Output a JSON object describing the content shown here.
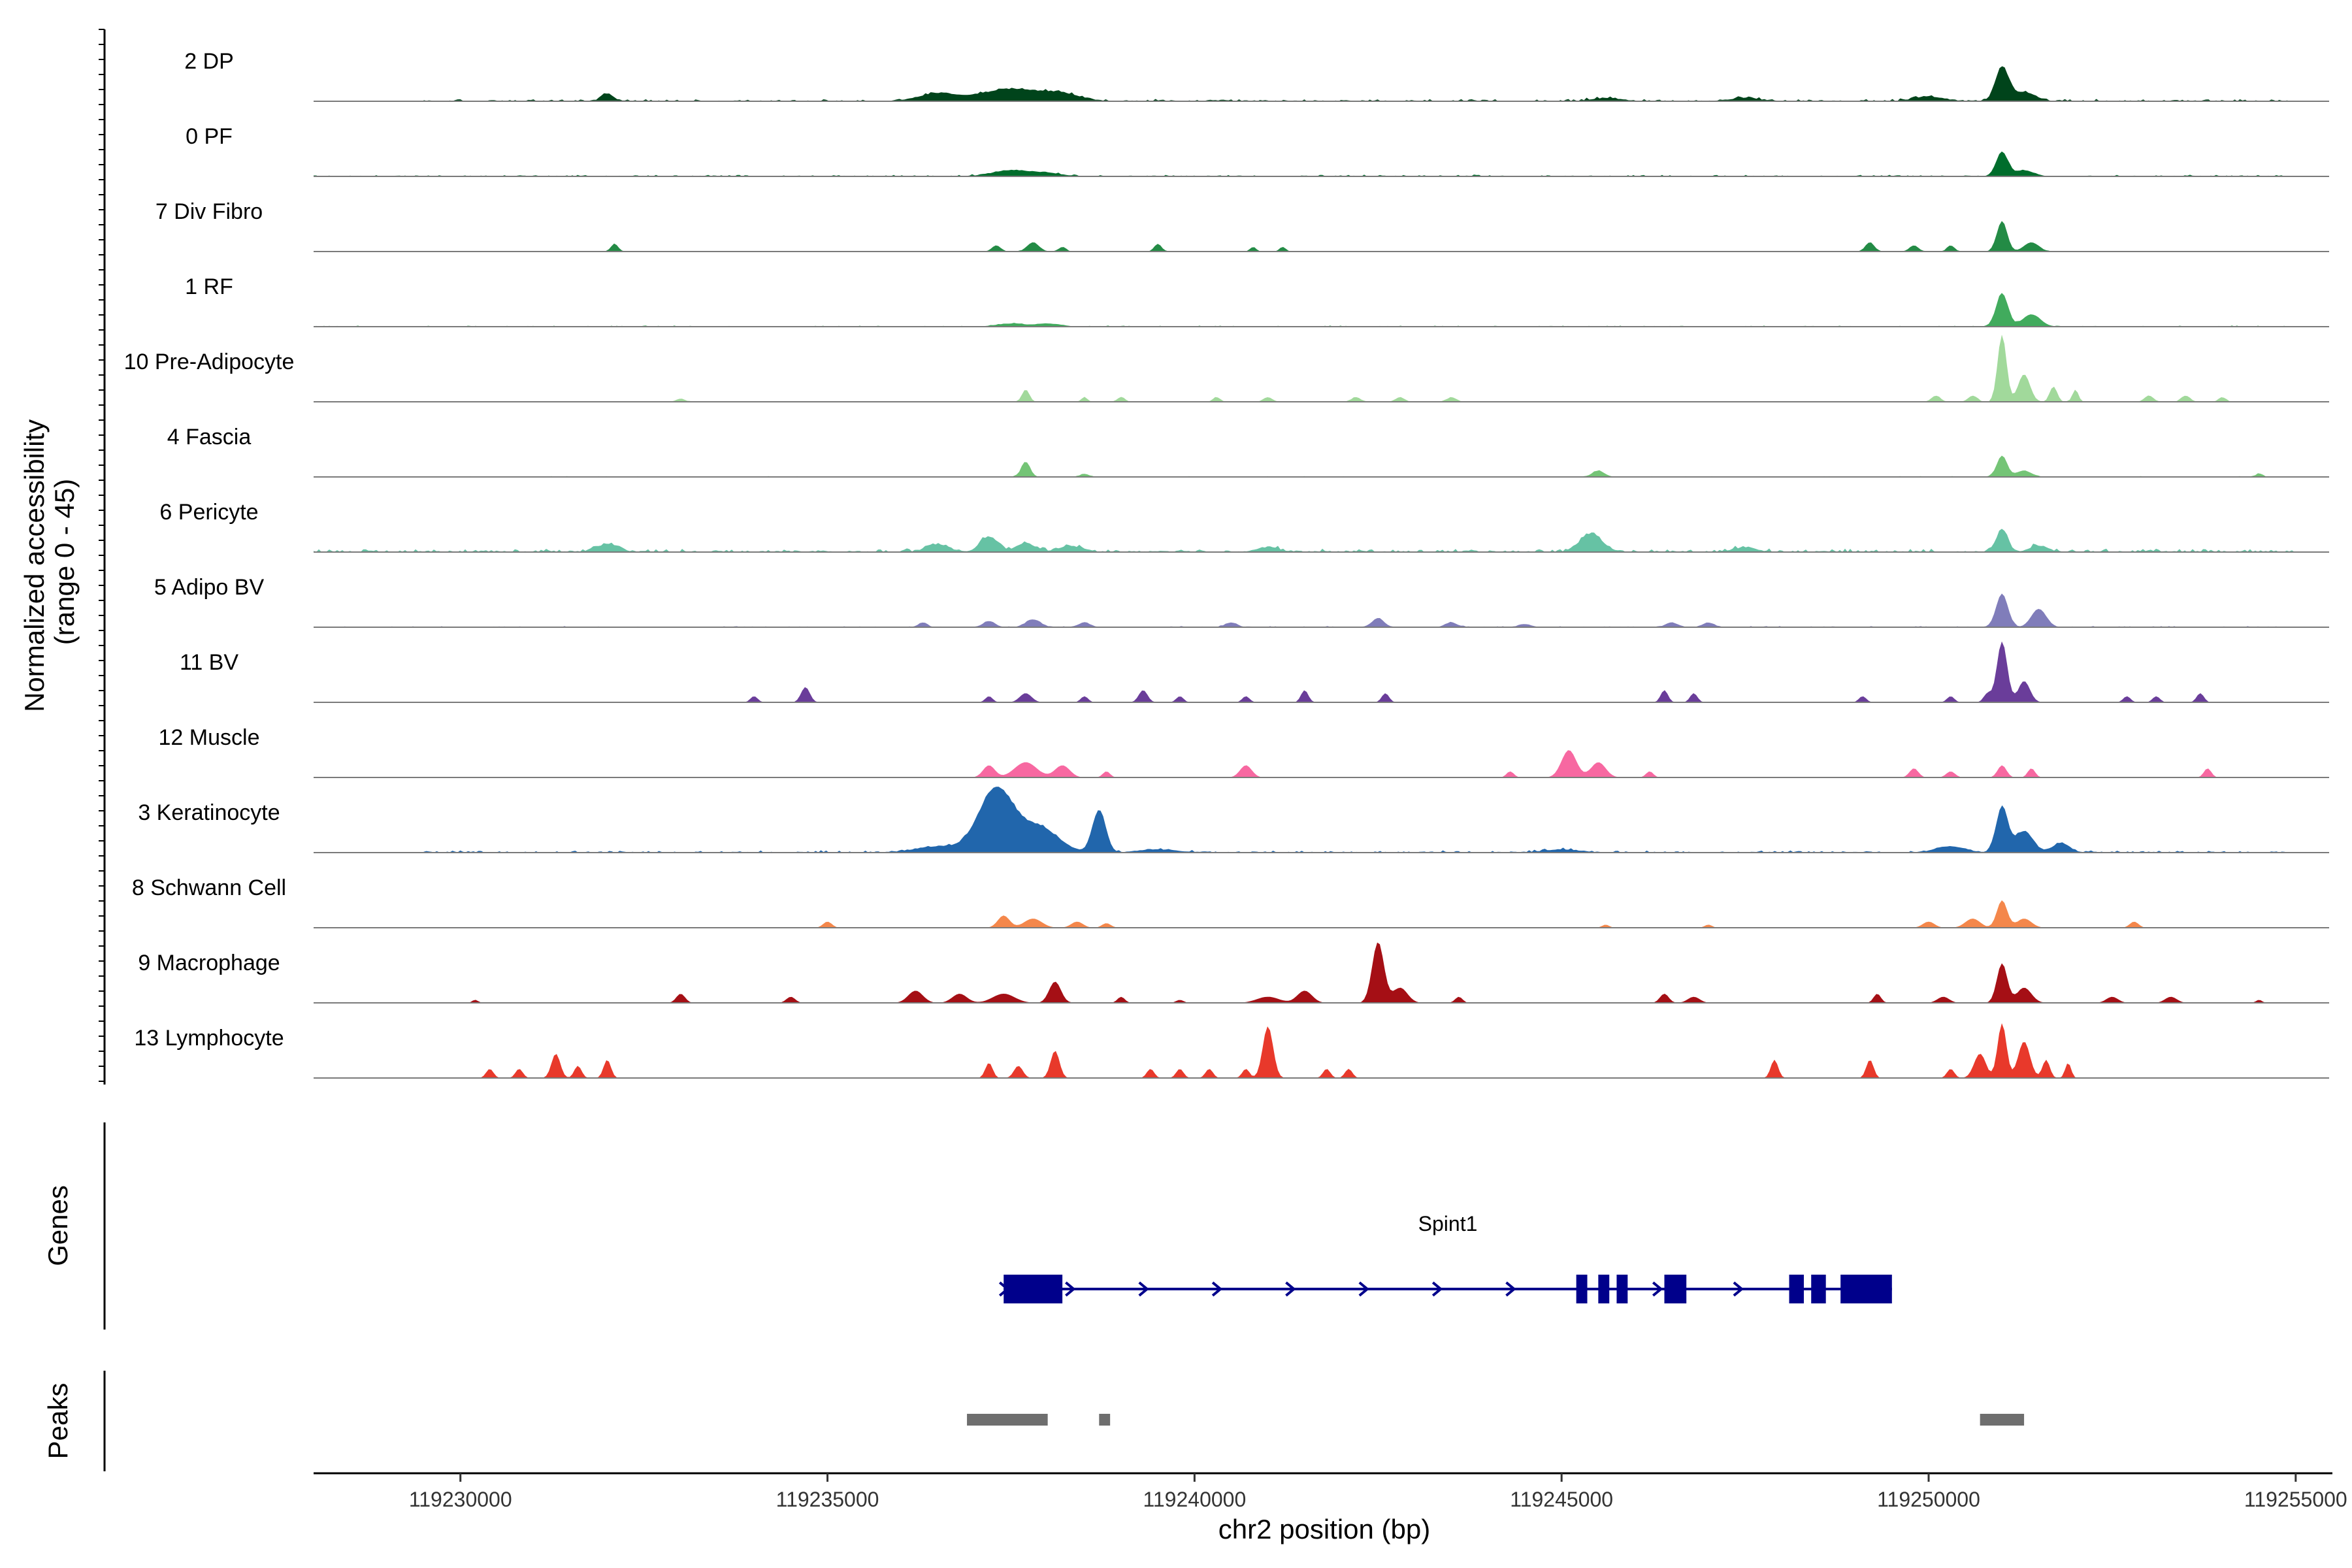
{
  "chart_data": {
    "type": "area",
    "y_axis_title_line1": "Normalized accessibility",
    "y_axis_title_line2": "(range 0 - 45)",
    "ylim": [
      0,
      45
    ],
    "x_axis_title": "chr2 position (bp)",
    "xlim": [
      119228000,
      119255500
    ],
    "x_ticks": [
      {
        "value": 119230000,
        "label": "119230000"
      },
      {
        "value": 119235000,
        "label": "119235000"
      },
      {
        "value": 119240000,
        "label": "119240000"
      },
      {
        "value": 119245000,
        "label": "119245000"
      },
      {
        "value": 119250000,
        "label": "119250000"
      },
      {
        "value": 119255000,
        "label": "119255000"
      }
    ],
    "tracks": [
      {
        "label": "2 DP",
        "color": "#00441b",
        "noise": 0.8,
        "start": 119229500,
        "end": 119255000,
        "peaks": [
          [
            119232000,
            80,
            5
          ],
          [
            119236500,
            260,
            5
          ],
          [
            119237500,
            400,
            8
          ],
          [
            119238200,
            250,
            4
          ],
          [
            119245600,
            200,
            2
          ],
          [
            119247500,
            200,
            2
          ],
          [
            119250000,
            200,
            3
          ],
          [
            119251000,
            90,
            22
          ],
          [
            119251300,
            150,
            6
          ]
        ]
      },
      {
        "label": "0 PF",
        "color": "#006d2c",
        "noise": 0.6,
        "start": 119228000,
        "end": 119255000,
        "peaks": [
          [
            119237500,
            250,
            4
          ],
          [
            119238000,
            200,
            2
          ],
          [
            119251000,
            80,
            16
          ],
          [
            119251300,
            120,
            4
          ]
        ]
      },
      {
        "label": "7 Div Fibro",
        "color": "#238b45",
        "noise": 0.15,
        "start": 119228000,
        "end": 119255000,
        "peaks": [
          [
            119232100,
            50,
            5
          ],
          [
            119237300,
            60,
            4
          ],
          [
            119237800,
            80,
            6
          ],
          [
            119238200,
            50,
            3
          ],
          [
            119239500,
            50,
            5
          ],
          [
            119240800,
            40,
            3
          ],
          [
            119241200,
            40,
            3
          ],
          [
            119249200,
            60,
            6
          ],
          [
            119249800,
            60,
            4
          ],
          [
            119250300,
            50,
            4
          ],
          [
            119251000,
            70,
            20
          ],
          [
            119251400,
            100,
            6
          ]
        ]
      },
      {
        "label": "1 RF",
        "color": "#41ab5d",
        "noise": 0.4,
        "start": 119228000,
        "end": 119255000,
        "peaks": [
          [
            119237500,
            200,
            2
          ],
          [
            119238000,
            150,
            2
          ],
          [
            119251000,
            80,
            22
          ],
          [
            119251400,
            120,
            8
          ]
        ]
      },
      {
        "label": "10 Pre-Adipocyte",
        "color": "#a1d99b",
        "noise": 0.2,
        "start": 119228000,
        "end": 119255000,
        "peaks": [
          [
            119233000,
            60,
            2
          ],
          [
            119237700,
            50,
            8
          ],
          [
            119238500,
            40,
            3
          ],
          [
            119239000,
            50,
            3
          ],
          [
            119240300,
            50,
            3
          ],
          [
            119241000,
            60,
            3
          ],
          [
            119242200,
            60,
            3
          ],
          [
            119242800,
            60,
            3
          ],
          [
            119243500,
            60,
            3
          ],
          [
            119250100,
            60,
            4
          ],
          [
            119250600,
            60,
            4
          ],
          [
            119251000,
            60,
            44
          ],
          [
            119251300,
            80,
            18
          ],
          [
            119251700,
            50,
            10
          ],
          [
            119252000,
            40,
            8
          ],
          [
            119253000,
            60,
            4
          ],
          [
            119253500,
            60,
            4
          ],
          [
            119254000,
            50,
            3
          ]
        ]
      },
      {
        "label": "4 Fascia",
        "color": "#74c476",
        "noise": 0.3,
        "start": 119228000,
        "end": 119255000,
        "peaks": [
          [
            119237700,
            60,
            10
          ],
          [
            119238500,
            60,
            2
          ],
          [
            119245500,
            80,
            4
          ],
          [
            119251000,
            70,
            14
          ],
          [
            119251300,
            100,
            4
          ],
          [
            119254500,
            50,
            2
          ]
        ]
      },
      {
        "label": "6 Pericyte",
        "color": "#66c2a4",
        "noise": 1.2,
        "start": 119228000,
        "end": 119255000,
        "peaks": [
          [
            119232000,
            150,
            5
          ],
          [
            119236500,
            150,
            5
          ],
          [
            119237200,
            120,
            10
          ],
          [
            119237700,
            120,
            6
          ],
          [
            119238300,
            150,
            4
          ],
          [
            119241000,
            150,
            3
          ],
          [
            119245400,
            150,
            12
          ],
          [
            119247500,
            150,
            3
          ],
          [
            119251000,
            80,
            14
          ],
          [
            119251500,
            120,
            4
          ]
        ]
      },
      {
        "label": "5 Adipo BV",
        "color": "#807dba",
        "noise": 0.4,
        "start": 119228000,
        "end": 119255000,
        "peaks": [
          [
            119236300,
            60,
            3
          ],
          [
            119237200,
            80,
            4
          ],
          [
            119237800,
            100,
            5
          ],
          [
            119238500,
            80,
            3
          ],
          [
            119240500,
            80,
            3
          ],
          [
            119242500,
            80,
            6
          ],
          [
            119243500,
            80,
            3
          ],
          [
            119244500,
            80,
            2
          ],
          [
            119246500,
            80,
            3
          ],
          [
            119247000,
            80,
            3
          ],
          [
            119251000,
            80,
            22
          ],
          [
            119251500,
            100,
            12
          ]
        ]
      },
      {
        "label": "11 BV",
        "color": "#6a3d9a",
        "noise": 0.0,
        "start": 119228000,
        "end": 119255000,
        "peaks": [
          [
            119234000,
            50,
            4
          ],
          [
            119234700,
            60,
            10
          ],
          [
            119237200,
            50,
            4
          ],
          [
            119237700,
            80,
            6
          ],
          [
            119238500,
            50,
            4
          ],
          [
            119239300,
            60,
            8
          ],
          [
            119239800,
            50,
            4
          ],
          [
            119240700,
            50,
            4
          ],
          [
            119241500,
            50,
            8
          ],
          [
            119242600,
            50,
            6
          ],
          [
            119246400,
            50,
            8
          ],
          [
            119246800,
            50,
            6
          ],
          [
            119249100,
            50,
            4
          ],
          [
            119250300,
            50,
            4
          ],
          [
            119250800,
            50,
            6
          ],
          [
            119251000,
            70,
            40
          ],
          [
            119251300,
            80,
            14
          ],
          [
            119252700,
            50,
            4
          ],
          [
            119253100,
            50,
            4
          ],
          [
            119253700,
            50,
            6
          ]
        ]
      },
      {
        "label": "12 Muscle",
        "color": "#f768a1",
        "noise": 0.0,
        "start": 119228000,
        "end": 119255000,
        "peaks": [
          [
            119237200,
            80,
            8
          ],
          [
            119237700,
            150,
            10
          ],
          [
            119238200,
            100,
            8
          ],
          [
            119238800,
            50,
            4
          ],
          [
            119240700,
            80,
            8
          ],
          [
            119244300,
            50,
            4
          ],
          [
            119245100,
            100,
            18
          ],
          [
            119245500,
            100,
            10
          ],
          [
            119246200,
            50,
            4
          ],
          [
            119249800,
            60,
            6
          ],
          [
            119250300,
            60,
            4
          ],
          [
            119251000,
            60,
            8
          ],
          [
            119251400,
            50,
            6
          ],
          [
            119253800,
            50,
            6
          ]
        ]
      },
      {
        "label": "3 Keratinocyte",
        "color": "#2166ac",
        "noise": 0.8,
        "start": 119229500,
        "end": 119255000,
        "peaks": [
          [
            119237300,
            240,
            42
          ],
          [
            119237900,
            250,
            16
          ],
          [
            119238700,
            90,
            28
          ],
          [
            119236500,
            300,
            4
          ],
          [
            119239500,
            250,
            2
          ],
          [
            119245000,
            250,
            2
          ],
          [
            119250300,
            200,
            4
          ],
          [
            119251000,
            80,
            30
          ],
          [
            119251300,
            120,
            14
          ],
          [
            119251800,
            120,
            6
          ]
        ]
      },
      {
        "label": "8 Schwann Cell",
        "color": "#f4874b",
        "noise": 0.0,
        "start": 119228000,
        "end": 119255000,
        "peaks": [
          [
            119235000,
            60,
            4
          ],
          [
            119237400,
            80,
            8
          ],
          [
            119237800,
            120,
            6
          ],
          [
            119238400,
            80,
            4
          ],
          [
            119238800,
            60,
            3
          ],
          [
            119245600,
            50,
            2
          ],
          [
            119247000,
            50,
            2
          ],
          [
            119250000,
            80,
            4
          ],
          [
            119250600,
            100,
            6
          ],
          [
            119251000,
            70,
            18
          ],
          [
            119251300,
            100,
            6
          ],
          [
            119252800,
            60,
            4
          ]
        ]
      },
      {
        "label": "9 Macrophage",
        "color": "#a50f15",
        "noise": 0.0,
        "start": 119228000,
        "end": 119255000,
        "peaks": [
          [
            119230200,
            40,
            2
          ],
          [
            119233000,
            60,
            6
          ],
          [
            119234500,
            60,
            4
          ],
          [
            119236200,
            100,
            8
          ],
          [
            119236800,
            100,
            6
          ],
          [
            119237400,
            150,
            6
          ],
          [
            119238100,
            80,
            14
          ],
          [
            119239000,
            50,
            4
          ],
          [
            119239800,
            50,
            2
          ],
          [
            119241000,
            150,
            4
          ],
          [
            119241500,
            100,
            8
          ],
          [
            119242500,
            80,
            40
          ],
          [
            119242800,
            100,
            10
          ],
          [
            119243600,
            50,
            4
          ],
          [
            119246400,
            60,
            6
          ],
          [
            119246800,
            80,
            4
          ],
          [
            119249300,
            50,
            6
          ],
          [
            119250200,
            80,
            4
          ],
          [
            119251000,
            70,
            26
          ],
          [
            119251300,
            100,
            10
          ],
          [
            119252500,
            80,
            4
          ],
          [
            119253300,
            80,
            4
          ],
          [
            119254500,
            40,
            2
          ]
        ]
      },
      {
        "label": "13 Lymphocyte",
        "color": "#e8392b",
        "noise": 0.0,
        "start": 119228000,
        "end": 119255000,
        "peaks": [
          [
            119230400,
            50,
            6
          ],
          [
            119230800,
            50,
            6
          ],
          [
            119231300,
            60,
            16
          ],
          [
            119231600,
            50,
            8
          ],
          [
            119232000,
            50,
            12
          ],
          [
            119237200,
            50,
            10
          ],
          [
            119237600,
            60,
            8
          ],
          [
            119238100,
            60,
            18
          ],
          [
            119239400,
            50,
            6
          ],
          [
            119239800,
            50,
            6
          ],
          [
            119240200,
            50,
            6
          ],
          [
            119240700,
            50,
            6
          ],
          [
            119241000,
            70,
            34
          ],
          [
            119241800,
            50,
            6
          ],
          [
            119242100,
            50,
            6
          ],
          [
            119247900,
            50,
            12
          ],
          [
            119249200,
            50,
            12
          ],
          [
            119250300,
            50,
            6
          ],
          [
            119250700,
            80,
            16
          ],
          [
            119251000,
            60,
            36
          ],
          [
            119251300,
            80,
            24
          ],
          [
            119251600,
            50,
            12
          ],
          [
            119251900,
            40,
            10
          ]
        ]
      }
    ],
    "genes_panel_title": "Genes",
    "genes": [
      {
        "name": "Spint1",
        "start": 119237400,
        "end": 119249500,
        "strand": "+",
        "exons": [
          [
            119237400,
            119238200
          ],
          [
            119245200,
            119245350
          ],
          [
            119245500,
            119245650
          ],
          [
            119245750,
            119245900
          ],
          [
            119246400,
            119246700
          ],
          [
            119248100,
            119248300
          ],
          [
            119248400,
            119248600
          ],
          [
            119248800,
            119249500
          ]
        ],
        "arrows": [
          119237400,
          119238300,
          119239300,
          119240300,
          119241300,
          119242300,
          119243300,
          119244300,
          119246300,
          119247400
        ]
      }
    ],
    "peaks_panel_title": "Peaks",
    "peaks": [
      [
        119236900,
        119238000
      ],
      [
        119238700,
        119238850
      ],
      [
        119250700,
        119251300
      ]
    ]
  }
}
